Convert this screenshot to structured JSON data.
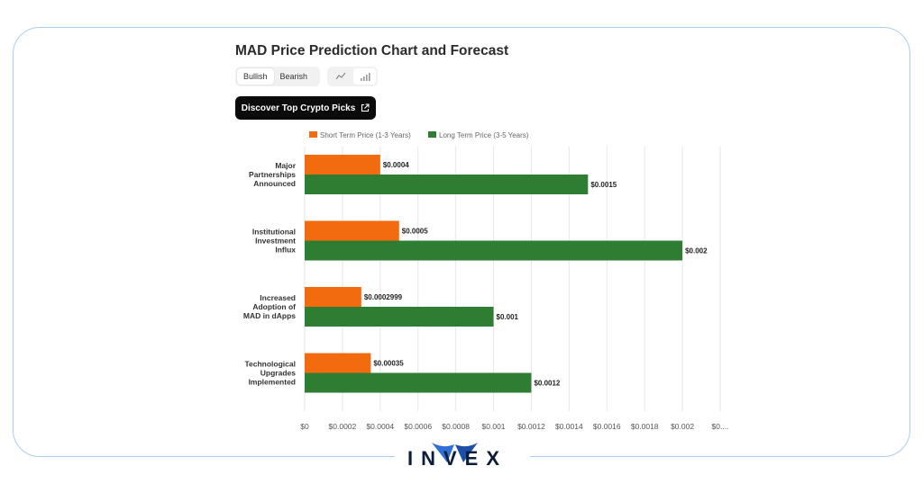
{
  "page": {
    "title": "MAD Price Prediction Chart and Forecast"
  },
  "toggles": {
    "bullish": "Bullish",
    "bearish": "Bearish"
  },
  "icons": {
    "line": "line-chart-icon",
    "bar": "bar-chart-icon",
    "external": "external-link-icon"
  },
  "cta": {
    "label": "Discover Top Crypto Picks"
  },
  "brand": {
    "name": "INVEX"
  },
  "colors": {
    "short": "#f26b0f",
    "long": "#2e7d32",
    "frame": "#a9cdf0",
    "logo": "#0b1d3a",
    "logo_accent": "#2f6fd6"
  },
  "chart_data": {
    "type": "bar",
    "orientation": "horizontal",
    "categories": [
      "Major Partnerships Announced",
      "Institutional Investment Influx",
      "Increased Adoption of MAD in dApps",
      "Technological Upgrades Implemented"
    ],
    "series": [
      {
        "name": "Short Term Price (1-3 Years)",
        "values": [
          0.0004,
          0.0005,
          0.0002999,
          0.00035
        ],
        "labels": [
          "$0.0004",
          "$0.0005",
          "$0.0002999",
          "$0.00035"
        ]
      },
      {
        "name": "Long Term Price (3-5 Years)",
        "values": [
          0.0015,
          0.002,
          0.001,
          0.0012
        ],
        "labels": [
          "$0.0015",
          "$0.002",
          "$0.001",
          "$0.0012"
        ]
      }
    ],
    "xlim": [
      0,
      0.0022
    ],
    "xticks": [
      0,
      0.0002,
      0.0004,
      0.0006,
      0.0008,
      0.001,
      0.0012,
      0.0014,
      0.0016,
      0.0018,
      0.002,
      0.0022
    ],
    "xtick_labels": [
      "$0",
      "$0.0002",
      "$0.0004",
      "$0.0006",
      "$0.0008",
      "$0.001",
      "$0.0012",
      "$0.0014",
      "$0.0016",
      "$0.0018",
      "$0.002",
      "$0...."
    ],
    "grid": true,
    "legend": "top"
  }
}
